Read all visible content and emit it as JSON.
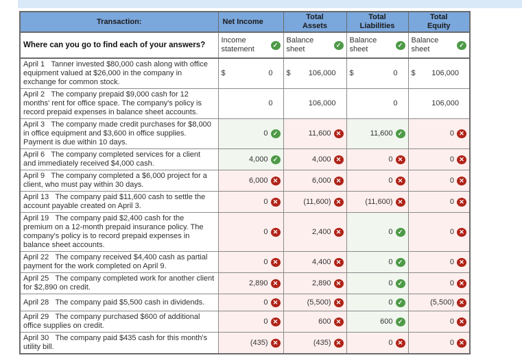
{
  "page": {
    "top_bar_color": "#d9e9f8"
  },
  "table": {
    "colors": {
      "header_bg": "#7aa7dc",
      "correct_bg": "#f1f6ef",
      "wrong_bg": "#fdefee",
      "correct_icon": "#4e9a47",
      "wrong_icon": "#b02318"
    },
    "columns": [
      {
        "label": "Transaction:"
      },
      {
        "label": "Net Income"
      },
      {
        "label": "Total\nAssets"
      },
      {
        "label": "Total\nLiabilities"
      },
      {
        "label": "Total\nEquity"
      }
    ],
    "source_row": {
      "question": "Where can you go to find each of your answers?",
      "answers": [
        {
          "text": "Income statement",
          "mark": "correct"
        },
        {
          "text": "Balance sheet",
          "mark": "correct"
        },
        {
          "text": "Balance sheet",
          "mark": "correct"
        },
        {
          "text": "Balance sheet",
          "mark": "correct"
        }
      ]
    },
    "rows": [
      {
        "date": "April 1",
        "text": "Tanner invested $80,000 cash along with office equipment valued at $26,000 in the company in exchange for common stock.",
        "cells": [
          {
            "prefix": "$",
            "value": "0",
            "mark": null
          },
          {
            "prefix": "$",
            "value": "106,000",
            "mark": null
          },
          {
            "prefix": "$",
            "value": "0",
            "mark": null
          },
          {
            "prefix": "$",
            "value": "106,000",
            "mark": null
          }
        ]
      },
      {
        "date": "April 2",
        "text": "The company prepaid $9,000 cash for 12 months' rent for office space. The company's policy is record prepaid expenses in balance sheet accounts.",
        "cells": [
          {
            "prefix": null,
            "value": "0",
            "mark": null
          },
          {
            "prefix": null,
            "value": "106,000",
            "mark": null
          },
          {
            "prefix": null,
            "value": "0",
            "mark": null
          },
          {
            "prefix": null,
            "value": "106,000",
            "mark": null
          }
        ]
      },
      {
        "date": "April 3",
        "text": "The company made credit purchases for $8,000 in office equipment and $3,600 in office supplies. Payment is due within 10 days.",
        "cells": [
          {
            "prefix": null,
            "value": "0",
            "mark": "correct"
          },
          {
            "prefix": null,
            "value": "11,600",
            "mark": "wrong"
          },
          {
            "prefix": null,
            "value": "11,600",
            "mark": "correct"
          },
          {
            "prefix": null,
            "value": "0",
            "mark": "wrong"
          }
        ]
      },
      {
        "date": "April 6",
        "text": "The company completed services for a client and immediately received $4,000 cash.",
        "cells": [
          {
            "prefix": null,
            "value": "4,000",
            "mark": "correct"
          },
          {
            "prefix": null,
            "value": "4,000",
            "mark": "wrong"
          },
          {
            "prefix": null,
            "value": "0",
            "mark": "wrong"
          },
          {
            "prefix": null,
            "value": "0",
            "mark": "wrong"
          }
        ]
      },
      {
        "date": "April 9",
        "text": "The company completed a $6,000 project for a client, who must pay within 30 days.",
        "cells": [
          {
            "prefix": null,
            "value": "6,000",
            "mark": "wrong"
          },
          {
            "prefix": null,
            "value": "6,000",
            "mark": "wrong"
          },
          {
            "prefix": null,
            "value": "0",
            "mark": "wrong"
          },
          {
            "prefix": null,
            "value": "0",
            "mark": "wrong"
          }
        ]
      },
      {
        "date": "April 13",
        "text": "The company paid $11,600 cash to settle the account payable created on April 3.",
        "cells": [
          {
            "prefix": null,
            "value": "0",
            "mark": "wrong"
          },
          {
            "prefix": null,
            "value": "(11,600)",
            "mark": "wrong"
          },
          {
            "prefix": null,
            "value": "(11,600)",
            "mark": "wrong"
          },
          {
            "prefix": null,
            "value": "0",
            "mark": "wrong"
          }
        ]
      },
      {
        "date": "April 19",
        "text": "The company paid $2,400 cash for the premium on a 12-month prepaid insurance policy. The company's policy is to record prepaid expenses in balance sheet accounts.",
        "cells": [
          {
            "prefix": null,
            "value": "0",
            "mark": "wrong"
          },
          {
            "prefix": null,
            "value": "2,400",
            "mark": "wrong"
          },
          {
            "prefix": null,
            "value": "0",
            "mark": "correct"
          },
          {
            "prefix": null,
            "value": "0",
            "mark": "wrong"
          }
        ]
      },
      {
        "date": "April 22",
        "text": "The company received $4,400 cash as partial payment for the work completed on April 9.",
        "cells": [
          {
            "prefix": null,
            "value": "0",
            "mark": "wrong"
          },
          {
            "prefix": null,
            "value": "4,400",
            "mark": "wrong"
          },
          {
            "prefix": null,
            "value": "0",
            "mark": "correct"
          },
          {
            "prefix": null,
            "value": "0",
            "mark": "wrong"
          }
        ]
      },
      {
        "date": "April 25",
        "text": "The company completed work for another client for $2,890 on credit.",
        "cells": [
          {
            "prefix": null,
            "value": "2,890",
            "mark": "wrong"
          },
          {
            "prefix": null,
            "value": "2,890",
            "mark": "wrong"
          },
          {
            "prefix": null,
            "value": "0",
            "mark": "correct"
          },
          {
            "prefix": null,
            "value": "0",
            "mark": "wrong"
          }
        ]
      },
      {
        "date": "April 28",
        "text": "The company paid $5,500 cash in dividends.",
        "cells": [
          {
            "prefix": null,
            "value": "0",
            "mark": "wrong"
          },
          {
            "prefix": null,
            "value": "(5,500)",
            "mark": "wrong"
          },
          {
            "prefix": null,
            "value": "0",
            "mark": "correct"
          },
          {
            "prefix": null,
            "value": "(5,500)",
            "mark": "wrong"
          }
        ]
      },
      {
        "date": "April 29",
        "text": "The company purchased $600 of additional office supplies on credit.",
        "cells": [
          {
            "prefix": null,
            "value": "0",
            "mark": "wrong"
          },
          {
            "prefix": null,
            "value": "600",
            "mark": "wrong"
          },
          {
            "prefix": null,
            "value": "600",
            "mark": "correct"
          },
          {
            "prefix": null,
            "value": "0",
            "mark": "wrong"
          }
        ]
      },
      {
        "date": "April 30",
        "text": "The company paid $435 cash for this month's utility bill.",
        "cells": [
          {
            "prefix": null,
            "value": "(435)",
            "mark": "wrong"
          },
          {
            "prefix": null,
            "value": "(435)",
            "mark": "wrong"
          },
          {
            "prefix": null,
            "value": "0",
            "mark": "wrong"
          },
          {
            "prefix": null,
            "value": "0",
            "mark": "wrong"
          }
        ]
      }
    ]
  }
}
